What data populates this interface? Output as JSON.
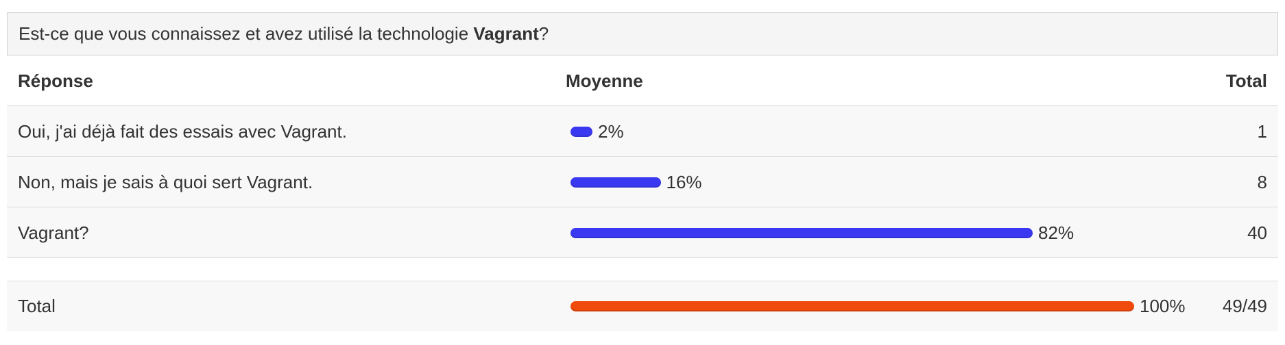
{
  "question": {
    "prefix": "Est-ce que vous connaissez et avez utilisé la technologie ",
    "emphasis": "Vagrant",
    "suffix": "?"
  },
  "header": {
    "response": "Réponse",
    "average": "Moyenne",
    "total": "Total"
  },
  "chart_data": {
    "type": "bar",
    "orientation": "horizontal",
    "categories": [
      "Oui, j'ai déjà fait des essais avec Vagrant.",
      "Non, mais je sais à quoi sert Vagrant.",
      "Vagrant?"
    ],
    "values": [
      2,
      16,
      82
    ],
    "value_labels": [
      "2%",
      "16%",
      "82%"
    ],
    "counts": [
      "1",
      "8",
      "40"
    ],
    "bar_color": "#3a38f0",
    "total": {
      "label": "Total",
      "value": 100,
      "value_label": "100%",
      "count": "49/49",
      "bar_color": "#f04a0c"
    },
    "xlim": [
      0,
      100
    ]
  }
}
